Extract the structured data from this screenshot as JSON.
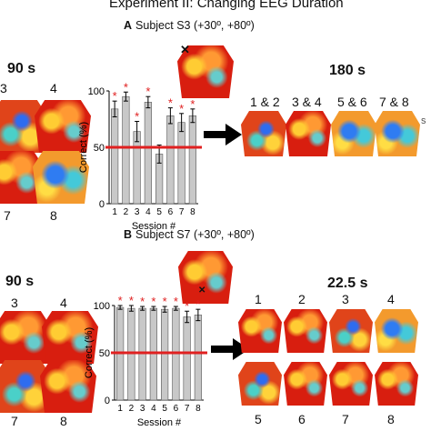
{
  "title": "Experiment II: Changing EEG Duration",
  "panelA": {
    "letter": "A",
    "subject": "Subject S3 (+30º, +80º)",
    "left_duration": "90 s",
    "right_duration": "180 s",
    "left_maps": [
      "3",
      "4",
      "7",
      "8"
    ],
    "right_maps": [
      "1 & 2",
      "3 & 4",
      "5 & 6",
      "7 & 8"
    ],
    "left_cut_label": "s"
  },
  "panelB": {
    "letter": "B",
    "subject": "Subject S7 (+30º, +80º)",
    "left_duration": "90 s",
    "right_duration": "22.5 s",
    "left_maps": [
      "3",
      "4",
      "7",
      "8"
    ],
    "right_maps_top": [
      "1",
      "2",
      "3",
      "4"
    ],
    "right_maps_bottom": [
      "5",
      "6",
      "7",
      "8"
    ]
  },
  "colors": {
    "bar": "#c8c8c8",
    "chance": "#e02020",
    "star": "#e02020"
  },
  "chart_data": [
    {
      "type": "bar",
      "ylabel": "Correct (%)",
      "xlabel": "Session #",
      "categories": [
        "1",
        "2",
        "3",
        "4",
        "5",
        "6",
        "7",
        "8"
      ],
      "values": [
        84,
        95,
        64,
        90,
        44,
        78,
        72,
        78
      ],
      "errors": [
        7,
        4,
        9,
        5,
        8,
        7,
        8,
        6
      ],
      "significant": [
        true,
        true,
        true,
        true,
        false,
        true,
        true,
        true
      ],
      "ylim": [
        0,
        100
      ],
      "yticks": [
        "0",
        "50",
        "100"
      ],
      "chance_line": 50,
      "star": "*"
    },
    {
      "type": "bar",
      "ylabel": "Correct (%)",
      "xlabel": "Session #",
      "categories": [
        "1",
        "2",
        "3",
        "4",
        "5",
        "6",
        "7",
        "8"
      ],
      "values": [
        98,
        97,
        97,
        97,
        96,
        97,
        88,
        90
      ],
      "errors": [
        2,
        3,
        2,
        2,
        3,
        2,
        6,
        6
      ],
      "significant": [
        true,
        true,
        true,
        true,
        true,
        true,
        true,
        true
      ],
      "ylim": [
        0,
        100
      ],
      "yticks": [
        "0",
        "50",
        "100"
      ],
      "chance_line": 50,
      "star": "*"
    }
  ]
}
